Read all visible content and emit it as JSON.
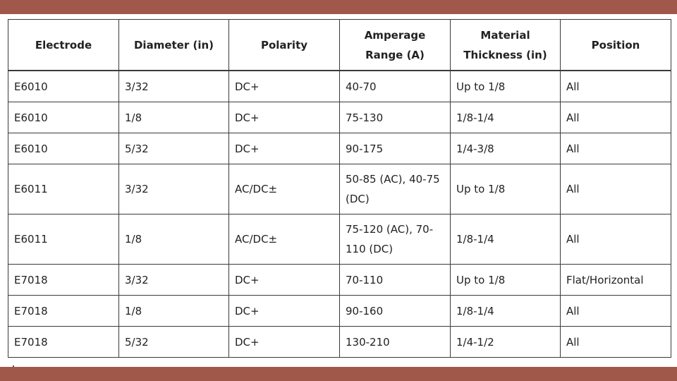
{
  "table": {
    "headers": [
      "Electrode",
      "Diameter (in)",
      "Polarity",
      "Amperage Range (A)",
      "Material Thickness (in)",
      "Position"
    ],
    "rows": [
      [
        "E6010",
        "3/32",
        "DC+",
        "40-70",
        "Up to 1/8",
        "All"
      ],
      [
        "E6010",
        "1/8",
        "DC+",
        "75-130",
        "1/8-1/4",
        "All"
      ],
      [
        "E6010",
        "5/32",
        "DC+",
        "90-175",
        "1/4-3/8",
        "All"
      ],
      [
        "E6011",
        "3/32",
        "AC/DC±",
        "50-85 (AC), 40-75 (DC)",
        "Up to 1/8",
        "All"
      ],
      [
        "E6011",
        "1/8",
        "AC/DC±",
        "75-120 (AC), 70-110 (DC)",
        "1/8-1/4",
        "All"
      ],
      [
        "E7018",
        "3/32",
        "DC+",
        "70-110",
        "Up to 1/8",
        "Flat/Horizontal"
      ],
      [
        "E7018",
        "1/8",
        "DC+",
        "90-160",
        "1/8-1/4",
        "All"
      ],
      [
        "E7018",
        "5/32",
        "DC+",
        "130-210",
        "1/4-1/2",
        "All"
      ]
    ]
  },
  "colors": {
    "frame": "#a0584a",
    "panel": "#ffffff",
    "border": "#3a3a3a",
    "text": "#222222"
  }
}
